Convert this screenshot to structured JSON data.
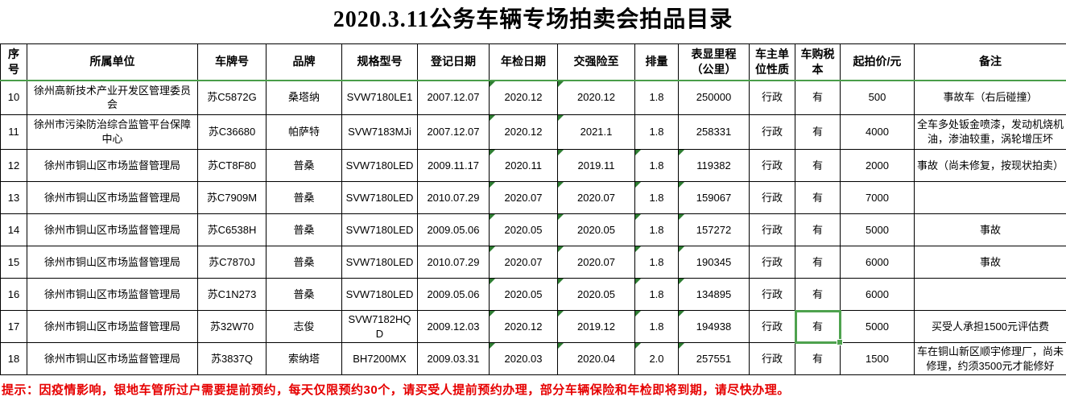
{
  "title": "2020.3.11公务车辆专场拍卖会拍品目录",
  "footer_note": "提示：因疫情影响，银地车管所过户需要提前预约，每天仅限预约30个，请买受人提前预约办理，部分车辆保险和年检即将到期，请尽快办理。",
  "colors": {
    "selection_green": "#4ea24e",
    "triangle_green": "#2e7d32",
    "header_divider_green": "#4a9d4a",
    "note_red": "#e60000",
    "grid_black": "#000000"
  },
  "selection": {
    "row_no": "17",
    "column": "tax_book"
  },
  "table": {
    "columns": [
      {
        "key": "no",
        "label": "序号"
      },
      {
        "key": "unit",
        "label": "所属单位"
      },
      {
        "key": "plate",
        "label": "车牌号"
      },
      {
        "key": "brand",
        "label": "品牌"
      },
      {
        "key": "model",
        "label": "规格型号"
      },
      {
        "key": "reg_date",
        "label": "登记日期"
      },
      {
        "key": "inspection",
        "label": "年检日期"
      },
      {
        "key": "insurance",
        "label": "交强险至"
      },
      {
        "key": "displacement",
        "label": "排量"
      },
      {
        "key": "mileage",
        "label": "表显里程（公里）"
      },
      {
        "key": "owner_type",
        "label": "车主单位性质"
      },
      {
        "key": "tax_book",
        "label": "车购税本"
      },
      {
        "key": "start_price",
        "label": "起拍价/元"
      },
      {
        "key": "remark",
        "label": "备注"
      }
    ],
    "rows": [
      {
        "no": "10",
        "unit": "徐州高新技术产业开发区管理委员会",
        "plate": "苏C5872G",
        "brand": "桑塔纳",
        "model": "SVW7180LE1",
        "reg_date": "2007.12.07",
        "inspection": "2020.12",
        "insurance": "2020.12",
        "displacement": "1.8",
        "mileage": "250000",
        "owner_type": "行政",
        "tax_book": "有",
        "start_price": "500",
        "remark": "事故车（右后碰撞）",
        "flags": [
          "inspection",
          "insurance"
        ],
        "tall": true
      },
      {
        "no": "11",
        "unit": "徐州市污染防治综合监管平台保障中心",
        "plate": "苏C36680",
        "brand": "帕萨特",
        "model": "SVW7183MJi",
        "reg_date": "2007.12.07",
        "inspection": "2020.12",
        "insurance": "2021.1",
        "displacement": "1.8",
        "mileage": "258331",
        "owner_type": "行政",
        "tax_book": "有",
        "start_price": "4000",
        "remark": "全车多处钣金喷漆，发动机烧机油，渗油较重，涡轮增压坏",
        "flags": [
          "inspection",
          "insurance"
        ],
        "tall": true
      },
      {
        "no": "12",
        "unit": "徐州市铜山区市场监督管理局",
        "plate": "苏CT8F80",
        "brand": "普桑",
        "model": "SVW7180LED",
        "reg_date": "2009.11.17",
        "inspection": "2020.11",
        "insurance": "2019.11",
        "displacement": "1.8",
        "mileage": "119382",
        "owner_type": "行政",
        "tax_book": "有",
        "start_price": "2000",
        "remark": "事故（尚未修复，按现状拍卖）",
        "flags": [
          "inspection",
          "insurance",
          "displacement",
          "mileage"
        ],
        "tall": false
      },
      {
        "no": "13",
        "unit": "徐州市铜山区市场监督管理局",
        "plate": "苏C7909M",
        "brand": "普桑",
        "model": "SVW7180LED",
        "reg_date": "2010.07.29",
        "inspection": "2020.07",
        "insurance": "2020.07",
        "displacement": "1.8",
        "mileage": "159067",
        "owner_type": "行政",
        "tax_book": "有",
        "start_price": "7000",
        "remark": "",
        "flags": [
          "inspection",
          "insurance",
          "displacement",
          "mileage"
        ],
        "tall": false
      },
      {
        "no": "14",
        "unit": "徐州市铜山区市场监督管理局",
        "plate": "苏C6538H",
        "brand": "普桑",
        "model": "SVW7180LED",
        "reg_date": "2009.05.06",
        "inspection": "2020.05",
        "insurance": "2020.05",
        "displacement": "1.8",
        "mileage": "157272",
        "owner_type": "行政",
        "tax_book": "有",
        "start_price": "5000",
        "remark": "事故",
        "flags": [
          "inspection",
          "insurance",
          "displacement",
          "mileage"
        ],
        "tall": false
      },
      {
        "no": "15",
        "unit": "徐州市铜山区市场监督管理局",
        "plate": "苏C7870J",
        "brand": "普桑",
        "model": "SVW7180LED",
        "reg_date": "2010.07.29",
        "inspection": "2020.07",
        "insurance": "2020.07",
        "displacement": "1.8",
        "mileage": "190345",
        "owner_type": "行政",
        "tax_book": "有",
        "start_price": "6000",
        "remark": "事故",
        "flags": [
          "inspection",
          "insurance",
          "displacement",
          "mileage"
        ],
        "tall": false
      },
      {
        "no": "16",
        "unit": "徐州市铜山区市场监督管理局",
        "plate": "苏C1N273",
        "brand": "普桑",
        "model": "SVW7180LED",
        "reg_date": "2009.05.06",
        "inspection": "2020.05",
        "insurance": "2020.05",
        "displacement": "1.8",
        "mileage": "134895",
        "owner_type": "行政",
        "tax_book": "有",
        "start_price": "6000",
        "remark": "",
        "flags": [
          "inspection",
          "insurance",
          "displacement",
          "mileage"
        ],
        "tall": false
      },
      {
        "no": "17",
        "unit": "徐州市铜山区市场监督管理局",
        "plate": "苏32W70",
        "brand": "志俊",
        "model": "SVW7182HQD",
        "reg_date": "2009.12.03",
        "inspection": "2020.12",
        "insurance": "2019.12",
        "displacement": "1.8",
        "mileage": "194938",
        "owner_type": "行政",
        "tax_book": "有",
        "start_price": "5000",
        "remark": "买受人承担1500元评估费",
        "flags": [
          "inspection",
          "insurance",
          "displacement",
          "mileage"
        ],
        "tall": false
      },
      {
        "no": "18",
        "unit": "徐州市铜山区市场监督管理局",
        "plate": "苏3837Q",
        "brand": "索纳塔",
        "model": "BH7200MX",
        "reg_date": "2009.03.31",
        "inspection": "2020.03",
        "insurance": "2020.04",
        "displacement": "2.0",
        "mileage": "257551",
        "owner_type": "行政",
        "tax_book": "有",
        "start_price": "1500",
        "remark": "车在铜山新区顺宇修理厂，尚未修理，约须3500元才能修好",
        "flags": [
          "inspection",
          "insurance",
          "displacement",
          "mileage"
        ],
        "tall": false
      }
    ]
  }
}
